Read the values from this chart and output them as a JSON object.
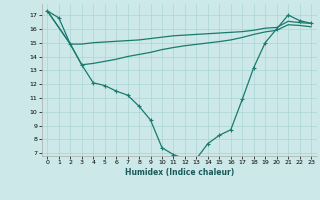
{
  "bg_color": "#cce8e8",
  "grid_color": "#aad4d4",
  "line_color": "#1a7a6e",
  "xlabel": "Humidex (Indice chaleur)",
  "xlim": [
    -0.5,
    23.5
  ],
  "ylim": [
    6.8,
    17.8
  ],
  "x_ticks": [
    0,
    1,
    2,
    3,
    4,
    5,
    6,
    7,
    8,
    9,
    10,
    11,
    12,
    13,
    14,
    15,
    16,
    17,
    18,
    19,
    20,
    21,
    22,
    23
  ],
  "y_ticks": [
    7,
    8,
    9,
    10,
    11,
    12,
    13,
    14,
    15,
    16,
    17
  ],
  "curve_main_x": [
    0,
    1,
    2,
    3,
    4,
    5,
    6,
    7,
    8,
    9,
    10,
    11,
    12,
    13,
    14,
    15,
    16,
    17,
    18,
    19,
    20,
    21,
    22,
    23
  ],
  "curve_main_y": [
    17.3,
    16.8,
    14.9,
    13.4,
    12.1,
    11.9,
    11.5,
    11.2,
    10.4,
    9.4,
    7.4,
    6.9,
    6.6,
    6.6,
    7.7,
    8.3,
    8.7,
    10.9,
    13.2,
    15.0,
    16.0,
    17.0,
    16.6,
    16.4
  ],
  "curve_upper_x": [
    0,
    2,
    3,
    4,
    5,
    6,
    7,
    8,
    9,
    10,
    11,
    12,
    13,
    14,
    15,
    16,
    17,
    18,
    19,
    20,
    21,
    22,
    23
  ],
  "curve_upper_y": [
    17.3,
    14.9,
    14.9,
    15.0,
    15.05,
    15.1,
    15.15,
    15.2,
    15.3,
    15.4,
    15.5,
    15.55,
    15.6,
    15.65,
    15.7,
    15.75,
    15.8,
    15.9,
    16.05,
    16.1,
    16.55,
    16.45,
    16.4
  ],
  "curve_lower_x": [
    0,
    2,
    3,
    4,
    5,
    6,
    7,
    8,
    9,
    10,
    11,
    12,
    13,
    14,
    15,
    16,
    17,
    18,
    19,
    20,
    21,
    22,
    23
  ],
  "curve_lower_y": [
    17.3,
    14.9,
    13.4,
    13.5,
    13.65,
    13.8,
    14.0,
    14.15,
    14.3,
    14.5,
    14.65,
    14.78,
    14.88,
    14.98,
    15.08,
    15.2,
    15.38,
    15.6,
    15.78,
    15.9,
    16.3,
    16.25,
    16.15
  ]
}
